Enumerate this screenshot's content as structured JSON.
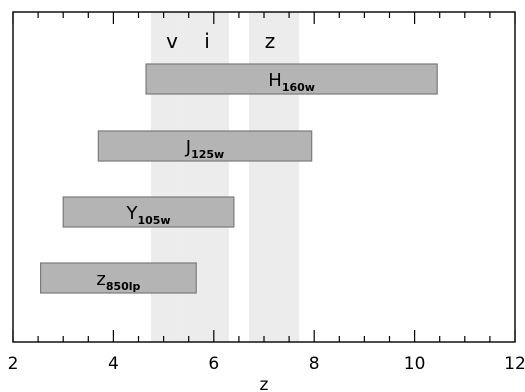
{
  "chart_data": {
    "type": "bar",
    "subtype": "horizontal-range",
    "xlabel": "z",
    "ylabel": "",
    "xlim": [
      2,
      12
    ],
    "x_ticks": [
      2,
      4,
      6,
      8,
      10,
      12
    ],
    "x_minor_step": 0.5,
    "grid": false,
    "shaded_bands": [
      {
        "label": "v",
        "range": [
          4.75,
          5.3
        ]
      },
      {
        "label": "i",
        "range": [
          5.3,
          6.3
        ]
      },
      {
        "label": "z",
        "range": [
          6.7,
          7.7
        ]
      }
    ],
    "bars": [
      {
        "name": "H",
        "subscript": "160w",
        "range": [
          4.65,
          10.45
        ]
      },
      {
        "name": "J",
        "subscript": "125w",
        "range": [
          3.7,
          7.95
        ]
      },
      {
        "name": "Y",
        "subscript": "105w",
        "range": [
          3.0,
          6.4
        ]
      },
      {
        "name": "z",
        "subscript": "850lp",
        "range": [
          2.55,
          5.65
        ]
      }
    ],
    "colors": {
      "band": "#ececec",
      "bar_fill": "#b4b4b4",
      "bar_stroke": "#7a7a7a"
    }
  }
}
